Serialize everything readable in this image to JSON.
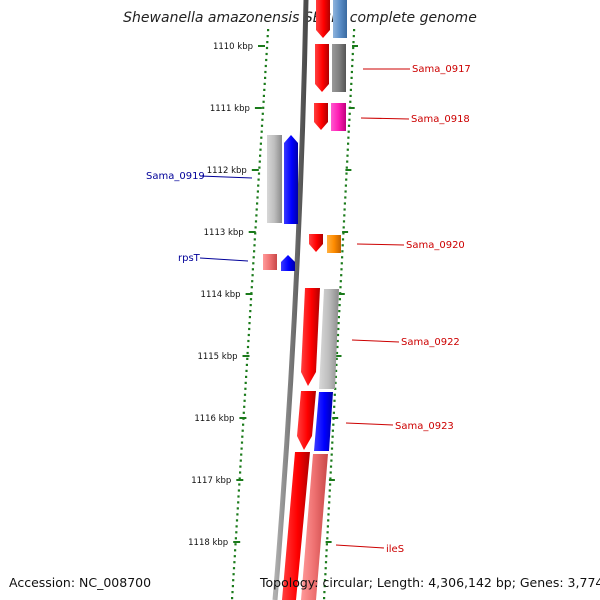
{
  "title": "Shewanella amazonensis SB2B, complete genome",
  "footer": {
    "accession": "Accession: NC_008700",
    "summary": "Topology: circular; Length: 4,306,142 bp; Genes: 3,774"
  },
  "colors": {
    "backbone": "#808080",
    "tick": "#1a7a1a",
    "forward_label": "#cc0000",
    "reverse_label": "#000099"
  },
  "ticks": [
    "1110 kbp",
    "1111 kbp",
    "1112 kbp",
    "1113 kbp",
    "1114 kbp",
    "1115 kbp",
    "1116 kbp",
    "1117 kbp",
    "1118 kbp"
  ],
  "genes": [
    {
      "name": "Sama_0917",
      "strand": "forward",
      "color": "#cc0000"
    },
    {
      "name": "Sama_0918",
      "strand": "forward",
      "color": "#cc0000"
    },
    {
      "name": "Sama_0919",
      "strand": "reverse",
      "color": "#000099"
    },
    {
      "name": "Sama_0920",
      "strand": "forward",
      "color": "#cc0000"
    },
    {
      "name": "rpsT",
      "strand": "reverse",
      "color": "#000099"
    },
    {
      "name": "Sama_0922",
      "strand": "forward",
      "color": "#cc0000"
    },
    {
      "name": "Sama_0923",
      "strand": "forward",
      "color": "#cc0000"
    },
    {
      "name": "ileS",
      "strand": "forward",
      "color": "#cc0000"
    }
  ]
}
